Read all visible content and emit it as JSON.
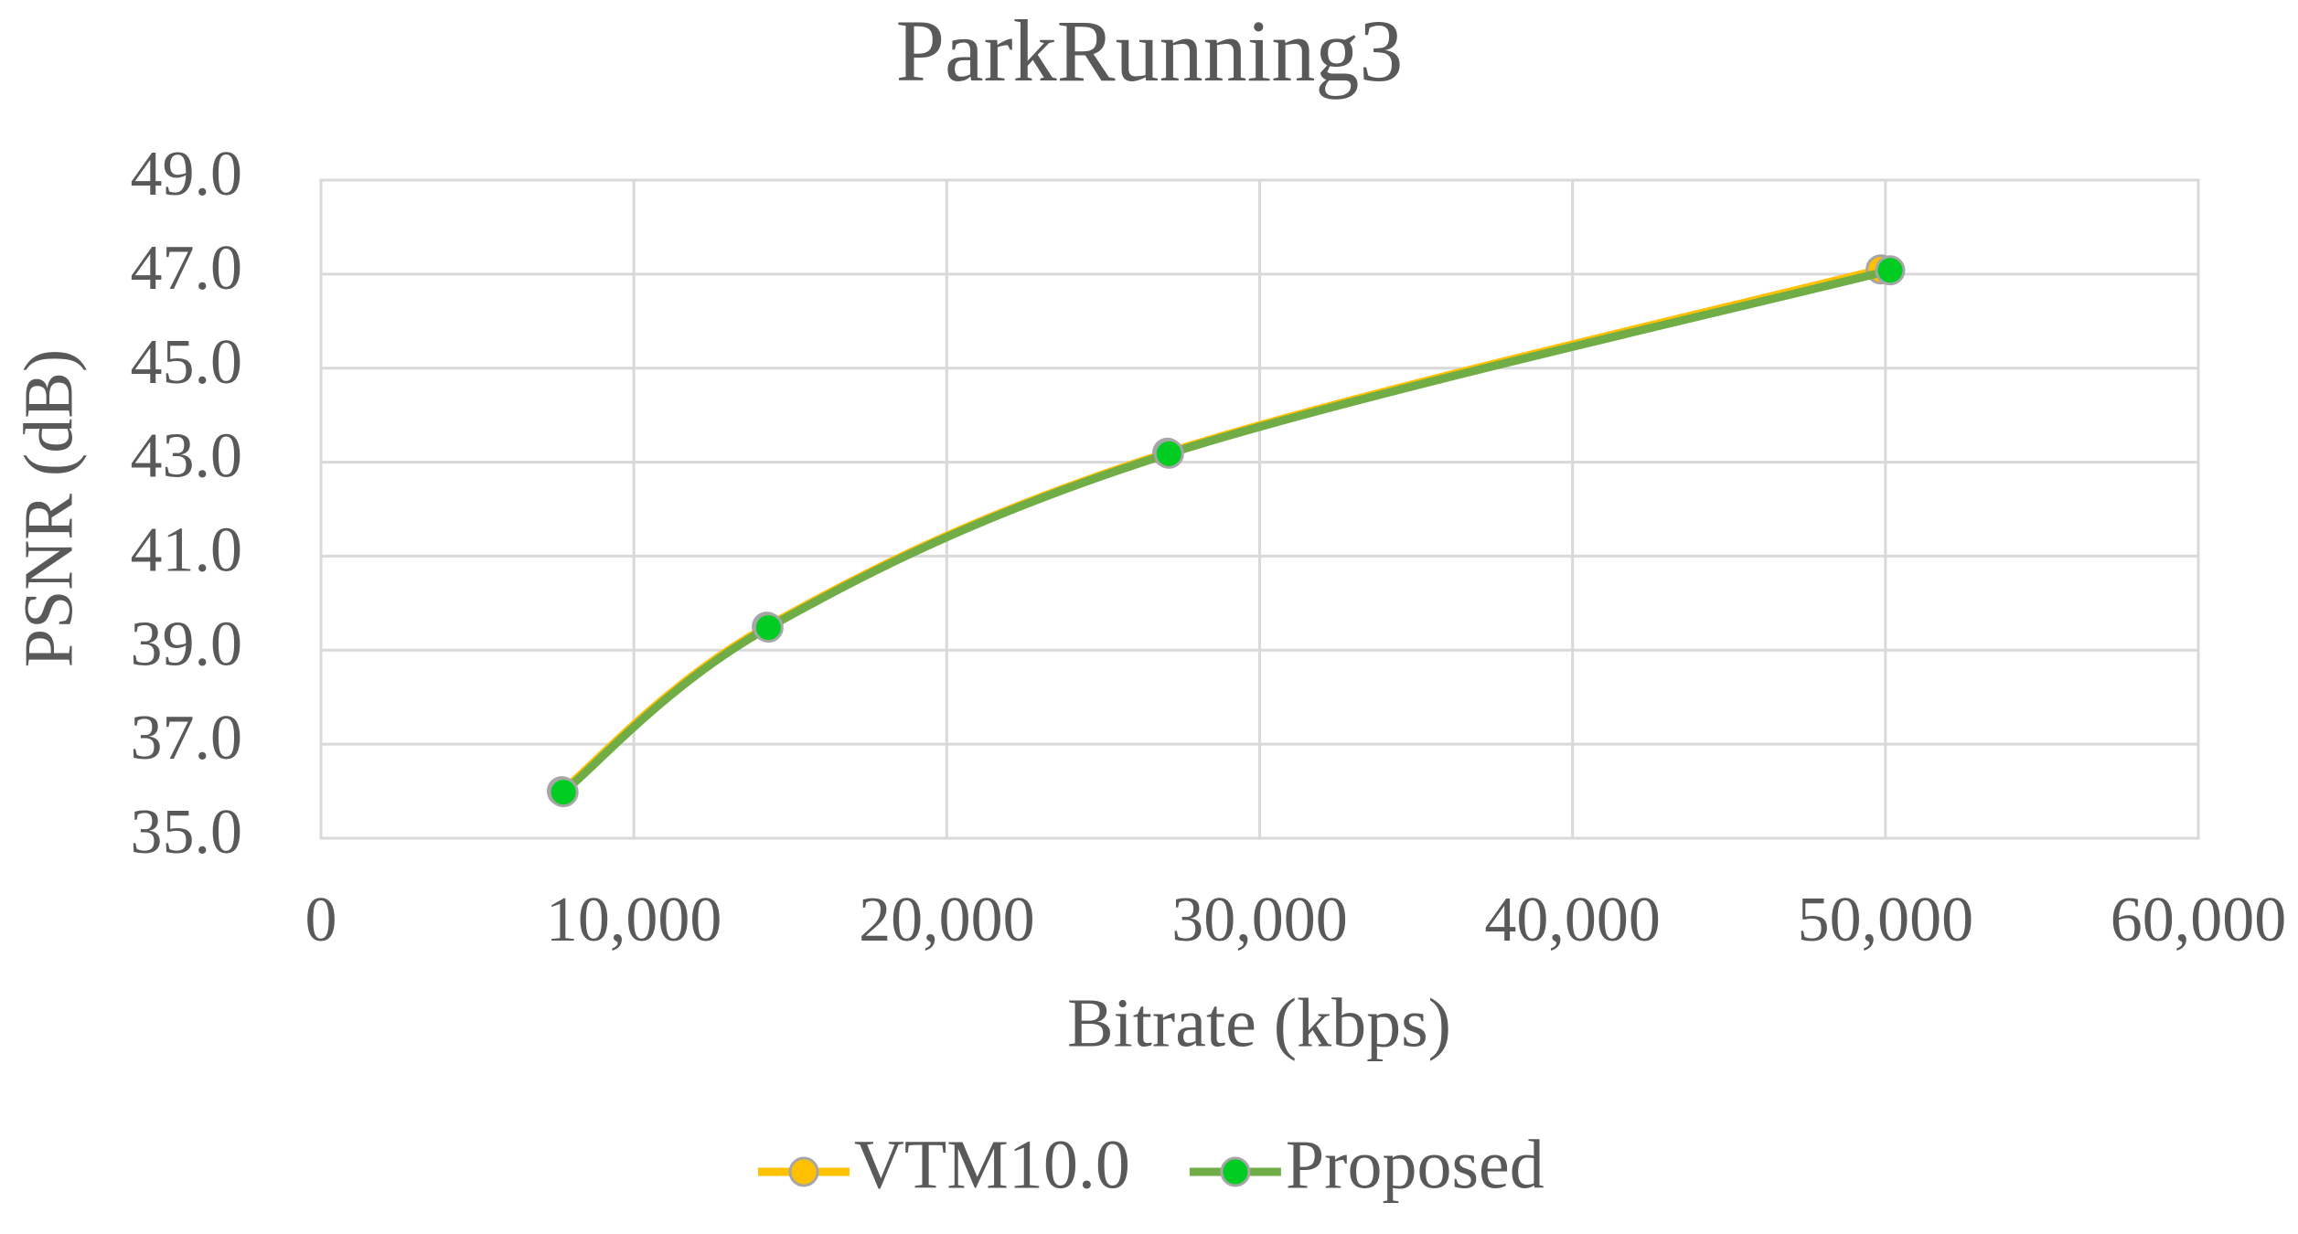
{
  "chart_data": {
    "type": "line",
    "title": "ParkRunning3",
    "x_label": "Bitrate (kbps)",
    "y_label": "PSNR (dB)",
    "xlim": [
      0,
      60000
    ],
    "xticks": [
      0,
      {
        "value": 10000,
        "label": "10,000"
      },
      {
        "value": 20000,
        "label": "20,000"
      },
      {
        "value": 30000,
        "label": "30,000"
      },
      {
        "value": 40000,
        "label": "40,000"
      },
      {
        "value": 50000,
        "label": "50,000"
      },
      {
        "value": 60000,
        "label": "60,000"
      }
    ],
    "ylim": [
      35,
      49
    ],
    "yticks": [
      {
        "value": 35,
        "label": "35.0"
      },
      {
        "value": 37,
        "label": "37.0"
      },
      {
        "value": 39,
        "label": "39.0"
      },
      {
        "value": 41,
        "label": "41.0"
      },
      {
        "value": 43,
        "label": "43.0"
      },
      {
        "value": 45,
        "label": "45.0"
      },
      {
        "value": 47,
        "label": "47.0"
      },
      {
        "value": 49,
        "label": "49.0"
      }
    ],
    "grid": true,
    "legend": "bottom",
    "series": [
      {
        "name": "VTM10.0",
        "color": "#ffc000",
        "marker_color": "#ffc000",
        "x": [
          7700,
          14250,
          27050,
          49850
        ],
        "values": [
          36.0,
          39.5,
          43.2,
          47.1
        ]
      },
      {
        "name": "Proposed",
        "color": "#70ad47",
        "marker_color": "#00cc22",
        "x": [
          7750,
          14300,
          27100,
          50150
        ],
        "values": [
          35.98,
          39.48,
          43.18,
          47.08
        ]
      }
    ]
  }
}
